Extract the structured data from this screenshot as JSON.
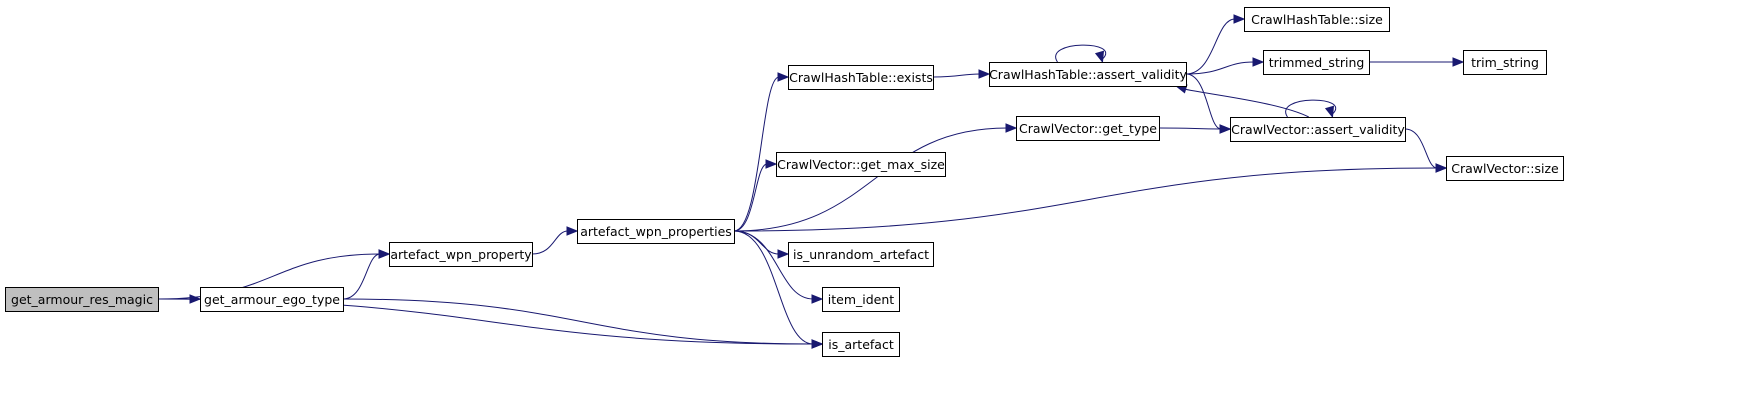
{
  "colors": {
    "edge": "#191970",
    "node_border": "#000000",
    "node_fill": "#ffffff",
    "root_fill": "#bfbfbf"
  },
  "nodes": [
    {
      "id": "get_armour_res_magic",
      "label": "get_armour_res_magic",
      "root": true
    },
    {
      "id": "get_armour_ego_type",
      "label": "get_armour_ego_type"
    },
    {
      "id": "artefact_wpn_property",
      "label": "artefact_wpn_property"
    },
    {
      "id": "artefact_wpn_properties",
      "label": "artefact_wpn_properties"
    },
    {
      "id": "is_artefact",
      "label": "is_artefact"
    },
    {
      "id": "item_ident",
      "label": "item_ident"
    },
    {
      "id": "is_unrandom_artefact",
      "label": "is_unrandom_artefact"
    },
    {
      "id": "cv_get_max_size",
      "label": "CrawlVector::get_max_size"
    },
    {
      "id": "cht_exists",
      "label": "CrawlHashTable::exists"
    },
    {
      "id": "cv_get_type",
      "label": "CrawlVector::get_type"
    },
    {
      "id": "cht_assert_validity",
      "label": "CrawlHashTable::assert_validity"
    },
    {
      "id": "cht_size",
      "label": "CrawlHashTable::size"
    },
    {
      "id": "trimmed_string",
      "label": "trimmed_string"
    },
    {
      "id": "trim_string",
      "label": "trim_string"
    },
    {
      "id": "cv_assert_validity",
      "label": "CrawlVector::assert_validity"
    },
    {
      "id": "cv_size",
      "label": "CrawlVector::size"
    }
  ],
  "edges": [
    {
      "from": "get_armour_res_magic",
      "to": "artefact_wpn_property"
    },
    {
      "from": "get_armour_res_magic",
      "to": "get_armour_ego_type"
    },
    {
      "from": "get_armour_res_magic",
      "to": "is_artefact"
    },
    {
      "from": "get_armour_ego_type",
      "to": "artefact_wpn_property"
    },
    {
      "from": "get_armour_ego_type",
      "to": "is_artefact"
    },
    {
      "from": "artefact_wpn_property",
      "to": "artefact_wpn_properties"
    },
    {
      "from": "artefact_wpn_properties",
      "to": "cht_exists"
    },
    {
      "from": "artefact_wpn_properties",
      "to": "cv_get_type"
    },
    {
      "from": "artefact_wpn_properties",
      "to": "cv_get_max_size"
    },
    {
      "from": "artefact_wpn_properties",
      "to": "cv_size"
    },
    {
      "from": "artefact_wpn_properties",
      "to": "is_unrandom_artefact"
    },
    {
      "from": "artefact_wpn_properties",
      "to": "item_ident"
    },
    {
      "from": "artefact_wpn_properties",
      "to": "is_artefact"
    },
    {
      "from": "cht_exists",
      "to": "cht_assert_validity"
    },
    {
      "from": "cht_assert_validity",
      "to": "cht_assert_validity"
    },
    {
      "from": "cht_assert_validity",
      "to": "cht_size"
    },
    {
      "from": "cht_assert_validity",
      "to": "trimmed_string"
    },
    {
      "from": "cht_assert_validity",
      "to": "cv_assert_validity"
    },
    {
      "from": "trimmed_string",
      "to": "trim_string"
    },
    {
      "from": "cv_get_type",
      "to": "cv_assert_validity"
    },
    {
      "from": "cv_assert_validity",
      "to": "cht_assert_validity"
    },
    {
      "from": "cv_assert_validity",
      "to": "cv_assert_validity"
    },
    {
      "from": "cv_assert_validity",
      "to": "cv_size"
    }
  ]
}
